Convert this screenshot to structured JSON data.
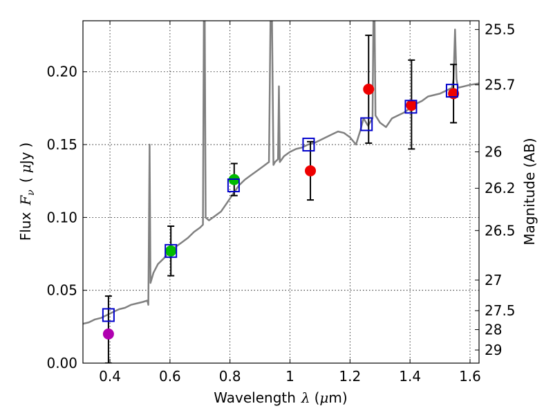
{
  "chart_data": {
    "type": "scatter",
    "title": "",
    "xlabel": {
      "prefix": "Wavelength",
      "symbol": "λ",
      "unit_open": "(",
      "unit_mu": "μ",
      "unit_rest": "m)"
    },
    "ylabel": {
      "prefix": "Flux",
      "symbol": "F",
      "subscript": "ν",
      "unit_open": "(",
      "unit_mu": "μ",
      "unit_rest": "Jy",
      "unit_close": ")"
    },
    "y2label": "Magnitude (AB)",
    "xlim": [
      0.31,
      1.63
    ],
    "ylim": [
      0.0,
      0.235
    ],
    "grid": true,
    "x_ticks": [
      "0.4",
      "0.6",
      "0.8",
      "1",
      "1.2",
      "1.4",
      "1.6"
    ],
    "x_tick_values": [
      0.4,
      0.6,
      0.8,
      1.0,
      1.2,
      1.4,
      1.6
    ],
    "y_ticks": [
      "0.00",
      "0.05",
      "0.10",
      "0.15",
      "0.20"
    ],
    "y_tick_values": [
      0.0,
      0.05,
      0.1,
      0.15,
      0.2
    ],
    "mag_ticks": [
      {
        "label": "25.5",
        "flux": 0.229
      },
      {
        "label": "25.7",
        "flux": 0.191
      },
      {
        "label": "26",
        "flux": 0.145
      },
      {
        "label": "26.2",
        "flux": 0.12
      },
      {
        "label": "26.5",
        "flux": 0.091
      },
      {
        "label": "27",
        "flux": 0.057
      },
      {
        "label": "27.5",
        "flux": 0.036
      },
      {
        "label": "28",
        "flux": 0.023
      },
      {
        "label": "29",
        "flux": 0.009
      }
    ],
    "spectrum_color": "#808080",
    "spectrum": [
      [
        0.31,
        0.027
      ],
      [
        0.33,
        0.028
      ],
      [
        0.35,
        0.03
      ],
      [
        0.37,
        0.031
      ],
      [
        0.39,
        0.033
      ],
      [
        0.41,
        0.035
      ],
      [
        0.43,
        0.037
      ],
      [
        0.45,
        0.038
      ],
      [
        0.47,
        0.04
      ],
      [
        0.49,
        0.041
      ],
      [
        0.51,
        0.042
      ],
      [
        0.525,
        0.043
      ],
      [
        0.528,
        0.04
      ],
      [
        0.532,
        0.15
      ],
      [
        0.535,
        0.055
      ],
      [
        0.545,
        0.062
      ],
      [
        0.56,
        0.068
      ],
      [
        0.58,
        0.072
      ],
      [
        0.6,
        0.077
      ],
      [
        0.62,
        0.08
      ],
      [
        0.64,
        0.083
      ],
      [
        0.66,
        0.086
      ],
      [
        0.68,
        0.09
      ],
      [
        0.7,
        0.093
      ],
      [
        0.71,
        0.095
      ],
      [
        0.713,
        0.235
      ],
      [
        0.716,
        0.235
      ],
      [
        0.719,
        0.1
      ],
      [
        0.73,
        0.098
      ],
      [
        0.75,
        0.101
      ],
      [
        0.77,
        0.104
      ],
      [
        0.79,
        0.11
      ],
      [
        0.81,
        0.116
      ],
      [
        0.83,
        0.122
      ],
      [
        0.85,
        0.126
      ],
      [
        0.87,
        0.129
      ],
      [
        0.89,
        0.132
      ],
      [
        0.91,
        0.135
      ],
      [
        0.93,
        0.138
      ],
      [
        0.935,
        0.235
      ],
      [
        0.94,
        0.235
      ],
      [
        0.945,
        0.136
      ],
      [
        0.95,
        0.138
      ],
      [
        0.96,
        0.14
      ],
      [
        0.963,
        0.19
      ],
      [
        0.966,
        0.138
      ],
      [
        0.98,
        0.142
      ],
      [
        1.0,
        0.145
      ],
      [
        1.02,
        0.147
      ],
      [
        1.04,
        0.148
      ],
      [
        1.06,
        0.15
      ],
      [
        1.08,
        0.151
      ],
      [
        1.1,
        0.153
      ],
      [
        1.12,
        0.155
      ],
      [
        1.14,
        0.157
      ],
      [
        1.16,
        0.159
      ],
      [
        1.18,
        0.158
      ],
      [
        1.2,
        0.155
      ],
      [
        1.22,
        0.15
      ],
      [
        1.235,
        0.16
      ],
      [
        1.245,
        0.168
      ],
      [
        1.26,
        0.163
      ],
      [
        1.275,
        0.168
      ],
      [
        1.278,
        0.235
      ],
      [
        1.282,
        0.235
      ],
      [
        1.285,
        0.17
      ],
      [
        1.3,
        0.165
      ],
      [
        1.32,
        0.162
      ],
      [
        1.34,
        0.168
      ],
      [
        1.36,
        0.17
      ],
      [
        1.38,
        0.172
      ],
      [
        1.4,
        0.175
      ],
      [
        1.42,
        0.178
      ],
      [
        1.44,
        0.18
      ],
      [
        1.46,
        0.183
      ],
      [
        1.48,
        0.184
      ],
      [
        1.5,
        0.185
      ],
      [
        1.52,
        0.187
      ],
      [
        1.54,
        0.189
      ],
      [
        1.545,
        0.195
      ],
      [
        1.55,
        0.229
      ],
      [
        1.555,
        0.195
      ],
      [
        1.56,
        0.189
      ],
      [
        1.58,
        0.19
      ],
      [
        1.6,
        0.191
      ],
      [
        1.63,
        0.192
      ]
    ],
    "model_color": "#0000cc",
    "model_points": [
      {
        "x": 0.395,
        "y": 0.033
      },
      {
        "x": 0.603,
        "y": 0.077
      },
      {
        "x": 0.812,
        "y": 0.122
      },
      {
        "x": 1.062,
        "y": 0.15
      },
      {
        "x": 1.255,
        "y": 0.164
      },
      {
        "x": 1.403,
        "y": 0.176
      },
      {
        "x": 1.54,
        "y": 0.187
      }
    ],
    "observed_points": [
      {
        "x": 0.395,
        "y": 0.02,
        "err_low": 0.02,
        "err_high": 0.026,
        "color": "#b000b0"
      },
      {
        "x": 0.603,
        "y": 0.077,
        "err_low": 0.017,
        "err_high": 0.017,
        "color": "#00bb00"
      },
      {
        "x": 0.814,
        "y": 0.126,
        "err_low": 0.011,
        "err_high": 0.011,
        "color": "#00bb00"
      },
      {
        "x": 1.068,
        "y": 0.132,
        "err_low": 0.02,
        "err_high": 0.02,
        "color": "#ee0000"
      },
      {
        "x": 1.262,
        "y": 0.188,
        "err_low": 0.037,
        "err_high": 0.037,
        "color": "#ee0000"
      },
      {
        "x": 1.405,
        "y": 0.177,
        "err_low": 0.03,
        "err_high": 0.031,
        "color": "#ee0000"
      },
      {
        "x": 1.545,
        "y": 0.185,
        "err_low": 0.02,
        "err_high": 0.02,
        "color": "#ee0000"
      }
    ]
  }
}
